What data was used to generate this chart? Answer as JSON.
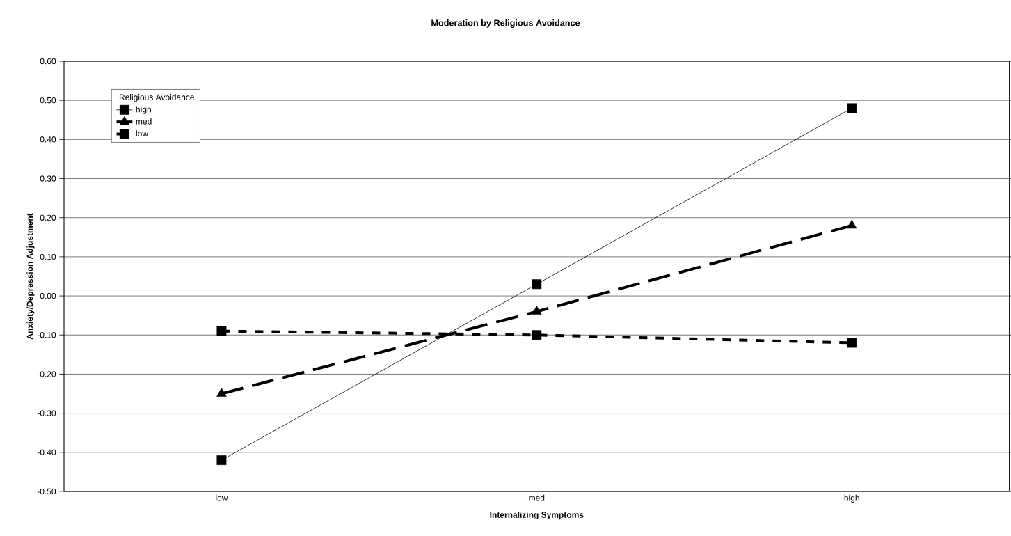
{
  "chart_data": {
    "type": "line",
    "title": "Moderation by Religious Avoidance",
    "xlabel": "Internalizing Symptoms",
    "ylabel": "Anxiety/Depression Adjustment",
    "legend_title": "Religious Avoidance",
    "categories": [
      "low",
      "med",
      "high"
    ],
    "series": [
      {
        "name": "high",
        "color": "#000000",
        "values": [
          -0.42,
          0.03,
          0.48
        ],
        "marker": "square",
        "line_style": "solid"
      },
      {
        "name": "med",
        "color": "#000000",
        "values": [
          -0.25,
          -0.04,
          0.18
        ],
        "marker": "triangle",
        "line_style": "dashed"
      },
      {
        "name": "low",
        "color": "#000000",
        "values": [
          -0.09,
          -0.1,
          -0.12
        ],
        "marker": "square",
        "line_style": "dotted"
      }
    ],
    "ylim": [
      -0.5,
      0.6
    ],
    "yticks": [
      {
        "value": -0.5,
        "label": "-0.50"
      },
      {
        "value": -0.4,
        "label": "-0.40"
      },
      {
        "value": -0.3,
        "label": "-0.30"
      },
      {
        "value": -0.2,
        "label": "-0.20"
      },
      {
        "value": -0.1,
        "label": "-0.10"
      },
      {
        "value": 0.0,
        "label": "0.00"
      },
      {
        "value": 0.1,
        "label": "0.10"
      },
      {
        "value": 0.2,
        "label": "0.20"
      },
      {
        "value": 0.3,
        "label": "0.30"
      },
      {
        "value": 0.4,
        "label": "0.40"
      },
      {
        "value": 0.5,
        "label": "0.50"
      },
      {
        "value": 0.6,
        "label": "0.60"
      }
    ],
    "grid": "y",
    "legend": "top left"
  }
}
